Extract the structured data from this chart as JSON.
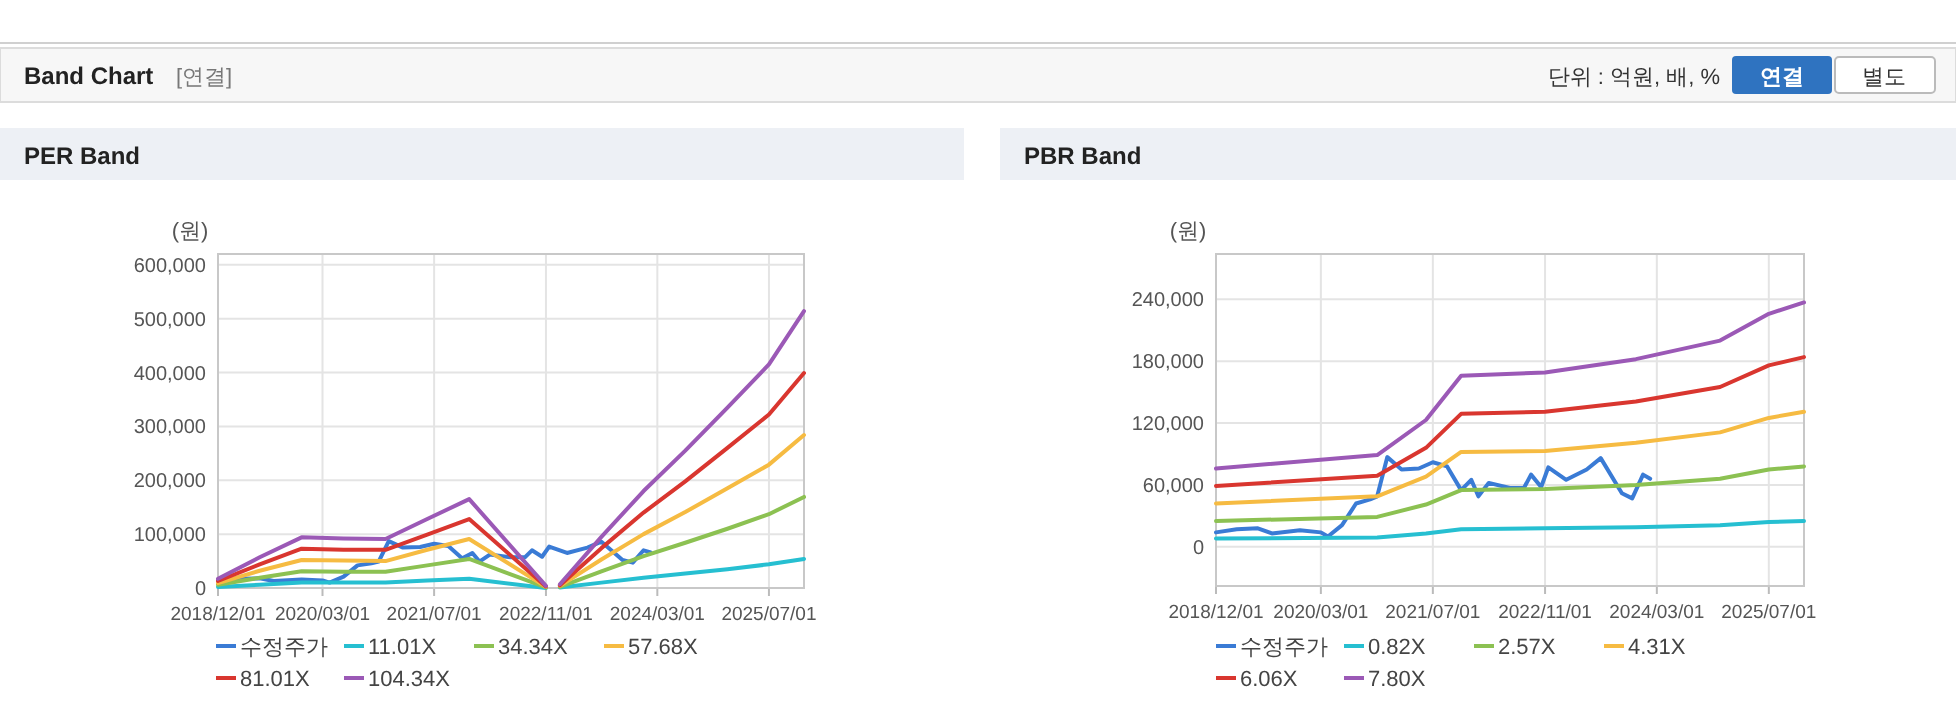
{
  "chart_data": [
    {
      "type": "line",
      "title": "PER Band",
      "ylabel": "(원)",
      "annotations": [
        "Band Chart",
        "[연결]",
        "단위 : 억원, 배, %",
        "연결",
        "별도"
      ],
      "xlim": [
        "2018-12-01",
        "2025-12-01"
      ],
      "xticks": [
        {
          "value": "2018-12-01",
          "label": "2018/12/01"
        },
        {
          "value": "2020-03-01",
          "label": "2020/03/01"
        },
        {
          "value": "2021-07-01",
          "label": "2021/07/01"
        },
        {
          "value": "2022-11-01",
          "label": "2022/11/01"
        },
        {
          "value": "2024-03-01",
          "label": "2024/03/01"
        },
        {
          "value": "2025-07-01",
          "label": "2025/07/01"
        }
      ],
      "ylim": [
        0,
        620000
      ],
      "yticks": [
        0,
        {
          "value": 100000,
          "label": "100,000"
        },
        {
          "value": 200000,
          "label": "200,000"
        },
        {
          "value": 300000,
          "label": "300,000"
        },
        {
          "value": 400000,
          "label": "400,000"
        },
        {
          "value": 500000,
          "label": "500,000"
        },
        {
          "value": 600000,
          "label": "600,000"
        }
      ],
      "grid": true,
      "legend": "bottom",
      "series": [
        {
          "name": "수정주가",
          "color": "#3a7bd5",
          "x": [
            "2018-12-01",
            "2019-03-01",
            "2019-06-01",
            "2019-08-01",
            "2019-12-01",
            "2020-03-01",
            "2020-04-01",
            "2020-06-01",
            "2020-08-01",
            "2020-10-01",
            "2020-11-01",
            "2020-12-15",
            "2021-02-15",
            "2021-05-01",
            "2021-07-01",
            "2021-09-01",
            "2021-11-01",
            "2021-12-15",
            "2022-01-15",
            "2022-03-01",
            "2022-06-01",
            "2022-08-01",
            "2022-09-01",
            "2022-10-15",
            "2022-11-15",
            "2023-02-01",
            "2023-05-01",
            "2023-07-01",
            "2023-10-01",
            "2023-11-15",
            "2024-01-01",
            "2024-02-01"
          ],
          "values": [
            14000,
            17000,
            18000,
            13000,
            16000,
            14000,
            10000,
            21000,
            42000,
            46000,
            49000,
            87000,
            75000,
            76000,
            82000,
            78000,
            55000,
            65000,
            49000,
            62000,
            57000,
            57000,
            70000,
            58000,
            77000,
            65000,
            75000,
            86000,
            52000,
            47000,
            70000,
            66000
          ]
        },
        {
          "name": "11.01X",
          "color": "#26bfd1",
          "x": [
            "2018-12-01",
            "2019-06-01",
            "2019-12-01",
            "2020-06-01",
            "2020-12-01",
            "2021-06-01",
            "2021-12-01",
            "2022-11-01",
            "2022-12-01",
            "2023-01-01",
            "2023-07-01",
            "2024-01-01",
            "2024-07-01",
            "2025-01-01",
            "2025-07-01",
            "2025-12-01"
          ],
          "values": [
            2000,
            6000,
            10000,
            10000,
            10000,
            14000,
            17000,
            0,
            null,
            1000,
            10000,
            19000,
            27000,
            35000,
            44000,
            54000
          ]
        },
        {
          "name": "34.34X",
          "color": "#8cc152",
          "x": [
            "2018-12-01",
            "2019-06-01",
            "2019-12-01",
            "2020-06-01",
            "2020-12-01",
            "2021-06-01",
            "2021-12-01",
            "2022-11-01",
            "2022-12-01",
            "2023-01-01",
            "2023-07-01",
            "2024-01-01",
            "2024-07-01",
            "2025-01-01",
            "2025-07-01",
            "2025-12-01"
          ],
          "values": [
            6000,
            19000,
            31000,
            30000,
            30000,
            42000,
            54000,
            1000,
            null,
            2000,
            31000,
            59000,
            84000,
            110000,
            137000,
            169000
          ]
        },
        {
          "name": "57.68X",
          "color": "#f6bb42",
          "x": [
            "2018-12-01",
            "2019-06-01",
            "2019-12-01",
            "2020-06-01",
            "2020-12-01",
            "2021-06-01",
            "2021-12-01",
            "2022-11-01",
            "2022-12-01",
            "2023-01-01",
            "2023-07-01",
            "2024-01-01",
            "2024-07-01",
            "2025-01-01",
            "2025-07-01",
            "2025-12-01"
          ],
          "values": [
            9000,
            32000,
            52000,
            51000,
            50000,
            71000,
            91000,
            2000,
            null,
            4000,
            53000,
            100000,
            141000,
            185000,
            229000,
            284000
          ]
        },
        {
          "name": "81.01X",
          "color": "#d9362f",
          "x": [
            "2018-12-01",
            "2019-06-01",
            "2019-12-01",
            "2020-06-01",
            "2020-12-01",
            "2021-06-01",
            "2021-12-01",
            "2022-11-01",
            "2022-12-01",
            "2023-01-01",
            "2023-07-01",
            "2024-01-01",
            "2024-07-01",
            "2025-01-01",
            "2025-07-01",
            "2025-12-01"
          ],
          "values": [
            13000,
            44000,
            73000,
            71000,
            71000,
            99000,
            128000,
            3000,
            null,
            5000,
            74000,
            140000,
            198000,
            260000,
            322000,
            399000
          ]
        },
        {
          "name": "104.34X",
          "color": "#9b59b6",
          "x": [
            "2018-12-01",
            "2019-06-01",
            "2019-12-01",
            "2020-06-01",
            "2020-12-01",
            "2021-06-01",
            "2021-12-01",
            "2022-11-01",
            "2022-12-01",
            "2023-01-01",
            "2023-07-01",
            "2024-01-01",
            "2024-07-01",
            "2025-01-01",
            "2025-07-01",
            "2025-12-01"
          ],
          "values": [
            17000,
            57000,
            94000,
            92000,
            91000,
            128000,
            165000,
            4000,
            null,
            7000,
            95000,
            180000,
            255000,
            335000,
            415000,
            514000
          ]
        }
      ]
    },
    {
      "type": "line",
      "title": "PBR Band",
      "ylabel": "(원)",
      "xlim": [
        "2018-12-01",
        "2025-12-01"
      ],
      "xticks": [
        {
          "value": "2018-12-01",
          "label": "2018/12/01"
        },
        {
          "value": "2020-03-01",
          "label": "2020/03/01"
        },
        {
          "value": "2021-07-01",
          "label": "2021/07/01"
        },
        {
          "value": "2022-11-01",
          "label": "2022/11/01"
        },
        {
          "value": "2024-03-01",
          "label": "2024/03/01"
        },
        {
          "value": "2025-07-01",
          "label": "2025/07/01"
        }
      ],
      "ylim": [
        -38000,
        284000
      ],
      "yticks": [
        0,
        {
          "value": 60000,
          "label": "60,000"
        },
        {
          "value": 120000,
          "label": "120,000"
        },
        {
          "value": 180000,
          "label": "180,000"
        },
        {
          "value": 240000,
          "label": "240,000"
        }
      ],
      "grid": true,
      "legend": "bottom",
      "series": [
        {
          "name": "수정주가",
          "color": "#3a7bd5",
          "x": [
            "2018-12-01",
            "2019-03-01",
            "2019-06-01",
            "2019-08-01",
            "2019-12-01",
            "2020-03-01",
            "2020-04-01",
            "2020-06-01",
            "2020-08-01",
            "2020-10-01",
            "2020-11-01",
            "2020-12-15",
            "2021-02-15",
            "2021-05-01",
            "2021-07-01",
            "2021-09-01",
            "2021-11-01",
            "2021-12-15",
            "2022-01-15",
            "2022-03-01",
            "2022-06-01",
            "2022-08-01",
            "2022-09-01",
            "2022-10-15",
            "2022-11-15",
            "2023-02-01",
            "2023-05-01",
            "2023-07-01",
            "2023-10-01",
            "2023-11-15",
            "2024-01-01",
            "2024-02-01"
          ],
          "values": [
            14000,
            17000,
            18000,
            13000,
            16000,
            14000,
            10000,
            21000,
            42000,
            46000,
            49000,
            87000,
            75000,
            76000,
            82000,
            78000,
            55000,
            65000,
            49000,
            62000,
            57000,
            57000,
            70000,
            58000,
            77000,
            65000,
            75000,
            86000,
            52000,
            47000,
            70000,
            66000
          ]
        },
        {
          "name": "0.82X",
          "color": "#26bfd1",
          "x": [
            "2018-12-01",
            "2020-11-01",
            "2021-06-01",
            "2021-11-01",
            "2022-11-01",
            "2023-12-01",
            "2024-12-01",
            "2025-07-01",
            "2025-12-01"
          ],
          "values": [
            8000,
            9000,
            13000,
            17000,
            18000,
            19000,
            21000,
            24000,
            25000
          ]
        },
        {
          "name": "2.57X",
          "color": "#8cc152",
          "x": [
            "2018-12-01",
            "2020-11-01",
            "2021-06-01",
            "2021-11-01",
            "2022-11-01",
            "2023-12-01",
            "2024-12-01",
            "2025-07-01",
            "2025-12-01"
          ],
          "values": [
            25000,
            29000,
            41000,
            55000,
            56000,
            60000,
            66000,
            75000,
            78000
          ]
        },
        {
          "name": "4.31X",
          "color": "#f6bb42",
          "x": [
            "2018-12-01",
            "2020-11-01",
            "2021-06-01",
            "2021-11-01",
            "2022-11-01",
            "2023-12-01",
            "2024-12-01",
            "2025-07-01",
            "2025-12-01"
          ],
          "values": [
            42000,
            49000,
            68000,
            92000,
            93000,
            101000,
            111000,
            125000,
            131000
          ]
        },
        {
          "name": "6.06X",
          "color": "#d9362f",
          "x": [
            "2018-12-01",
            "2020-11-01",
            "2021-06-01",
            "2021-11-01",
            "2022-11-01",
            "2023-12-01",
            "2024-12-01",
            "2025-07-01",
            "2025-12-01"
          ],
          "values": [
            59000,
            69000,
            96000,
            129000,
            131000,
            141000,
            155000,
            176000,
            184000
          ]
        },
        {
          "name": "7.80X",
          "color": "#9b59b6",
          "x": [
            "2018-12-01",
            "2020-11-01",
            "2021-06-01",
            "2021-11-01",
            "2022-11-01",
            "2023-12-01",
            "2024-12-01",
            "2025-07-01",
            "2025-12-01"
          ],
          "values": [
            76000,
            89000,
            123000,
            166000,
            169000,
            182000,
            200000,
            226000,
            237000
          ]
        }
      ]
    }
  ]
}
